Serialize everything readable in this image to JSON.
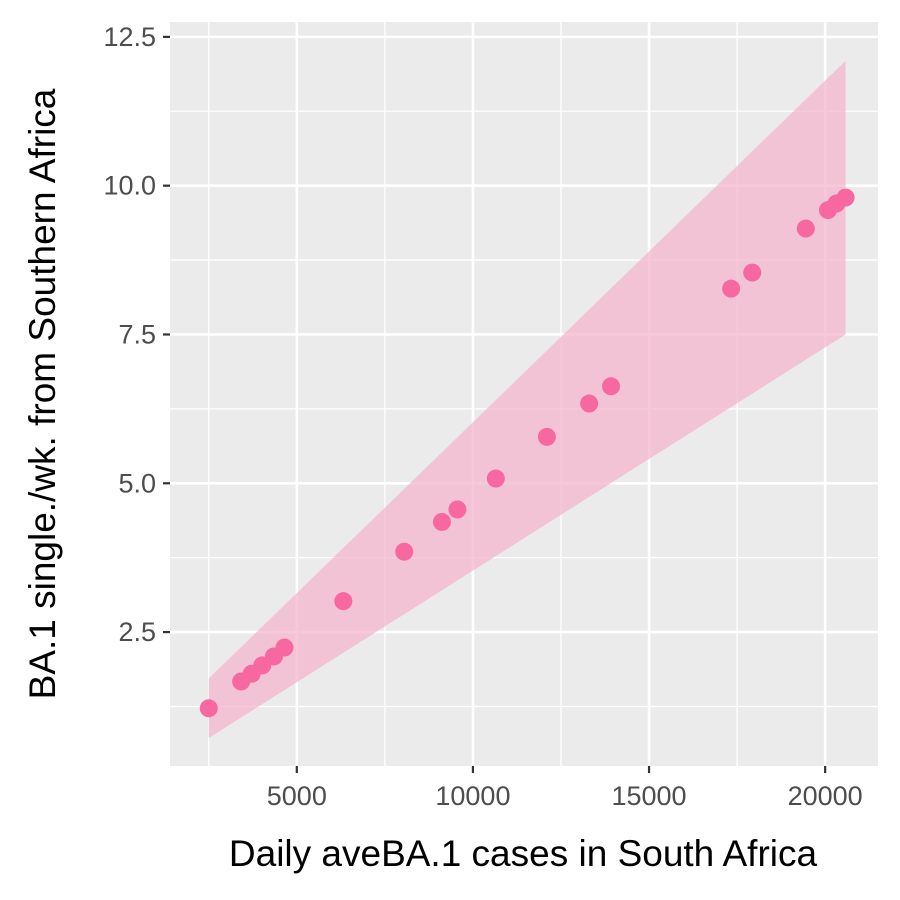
{
  "chart_data": {
    "type": "scatter",
    "title": "",
    "xlabel": "Daily aveBA.1 cases in South Africa",
    "ylabel": "BA.1 single./wk. from Southern Africa",
    "xlim": [
      1400,
      21500
    ],
    "ylim": [
      0.25,
      12.75
    ],
    "xticks": [
      5000,
      10000,
      15000,
      20000
    ],
    "xtick_labels": [
      "5000",
      "10000",
      "15000",
      "20000"
    ],
    "yticks": [
      2.5,
      5.0,
      7.5,
      10.0,
      12.5
    ],
    "ytick_labels": [
      "2.5",
      "5.0",
      "7.5",
      "10.0",
      "12.5"
    ],
    "grid": true,
    "points": [
      {
        "x": 2500,
        "y": 1.22
      },
      {
        "x": 3420,
        "y": 1.67
      },
      {
        "x": 3720,
        "y": 1.8
      },
      {
        "x": 4020,
        "y": 1.94
      },
      {
        "x": 4350,
        "y": 2.09
      },
      {
        "x": 4650,
        "y": 2.24
      },
      {
        "x": 6320,
        "y": 3.02
      },
      {
        "x": 8050,
        "y": 3.85
      },
      {
        "x": 9120,
        "y": 4.35
      },
      {
        "x": 9560,
        "y": 4.56
      },
      {
        "x": 10650,
        "y": 5.08
      },
      {
        "x": 12100,
        "y": 5.78
      },
      {
        "x": 13300,
        "y": 6.34
      },
      {
        "x": 13920,
        "y": 6.63
      },
      {
        "x": 17330,
        "y": 8.27
      },
      {
        "x": 17930,
        "y": 8.54
      },
      {
        "x": 19450,
        "y": 9.28
      },
      {
        "x": 20080,
        "y": 9.59
      },
      {
        "x": 20320,
        "y": 9.7
      },
      {
        "x": 20580,
        "y": 9.8
      }
    ],
    "band": {
      "x": [
        2500,
        20580
      ],
      "lower": [
        0.72,
        7.5
      ],
      "upper": [
        1.72,
        12.1
      ]
    },
    "colors": {
      "point": "#f768a1",
      "band": "#f4b6cc",
      "panel": "#ebebeb",
      "grid": "#ffffff"
    }
  }
}
